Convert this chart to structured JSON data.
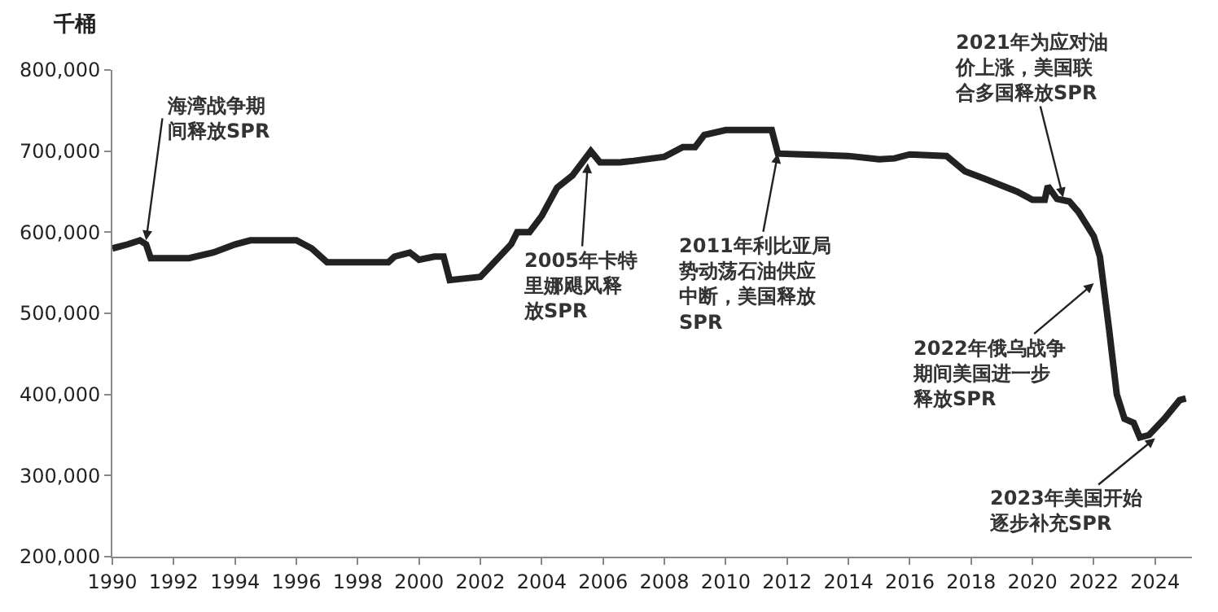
{
  "chart_data": {
    "type": "line",
    "ylabel": "千桶",
    "x": [
      1990.0,
      1990.5,
      1990.9,
      1991.1,
      1991.25,
      1992.5,
      1993.3,
      1994,
      1994.5,
      1996,
      1996.5,
      1997,
      1999,
      1999.2,
      1999.7,
      2000,
      2000.5,
      2000.8,
      2001,
      2001.5,
      2002,
      2002.5,
      2003,
      2003.2,
      2003.6,
      2004,
      2004.5,
      2005,
      2005.6,
      2005.9,
      2006.5,
      2007,
      2008,
      2008.6,
      2009,
      2009.3,
      2010,
      2011.5,
      2011.7,
      2012.5,
      2014,
      2015,
      2015.5,
      2016,
      2017.2,
      2017.8,
      2018.5,
      2019.5,
      2020,
      2020.4,
      2020.5,
      2020.8,
      2021.2,
      2021.5,
      2022,
      2022.2,
      2022.5,
      2022.75,
      2023,
      2023.3,
      2023.5,
      2023.8,
      2024.3,
      2024.8,
      2025
    ],
    "series": [
      {
        "color": "#222222",
        "values": [
          580000,
          585000,
          590000,
          585000,
          568000,
          568000,
          575000,
          585000,
          590000,
          590000,
          580000,
          563000,
          563000,
          570000,
          575000,
          566000,
          570000,
          570000,
          541000,
          543000,
          545000,
          565000,
          585000,
          600000,
          600000,
          620000,
          655000,
          670000,
          700000,
          686000,
          686000,
          688000,
          693000,
          705000,
          705000,
          720000,
          726000,
          726000,
          697000,
          696000,
          694000,
          690000,
          691000,
          696000,
          694000,
          675000,
          665000,
          650000,
          640000,
          640000,
          657000,
          641000,
          638000,
          625000,
          595000,
          570000,
          480000,
          400000,
          370000,
          365000,
          347000,
          350000,
          370000,
          393000,
          395000
        ]
      }
    ],
    "xlim": [
      1990,
      2025.2
    ],
    "xticks": [
      1990,
      1992,
      1994,
      1996,
      1998,
      2000,
      2002,
      2004,
      2006,
      2008,
      2010,
      2012,
      2014,
      2016,
      2018,
      2020,
      2022,
      2024
    ],
    "ylim": [
      200000,
      800000
    ],
    "yticks": [
      {
        "value": 200000,
        "label": "200,000"
      },
      {
        "value": 300000,
        "label": "300,000"
      },
      {
        "value": 400000,
        "label": "400,000"
      },
      {
        "value": 500000,
        "label": "500,000"
      },
      {
        "value": 600000,
        "label": "600,000"
      },
      {
        "value": 700000,
        "label": "700,000"
      },
      {
        "value": 800000,
        "label": "800,000"
      }
    ],
    "marker": "none",
    "line_style": "solid",
    "annotations": [
      {
        "text": "海湾战争期间释放SPR",
        "x": 1991.1,
        "y": 590000
      },
      {
        "text": "2005年卡特里娜飓风释放SPR",
        "x": 2005.5,
        "y": 685000
      },
      {
        "text": "2011年利比亚局势动荡石油供应中断，美国释放SPR",
        "x": 2011.7,
        "y": 697000
      },
      {
        "text": "2021年为应对油价上涨，美国联合多国释放SPR",
        "x": 2021.0,
        "y": 643000
      },
      {
        "text": "2022年俄乌战争期间美国进一步释放SPR",
        "x": 2022.0,
        "y": 537000
      },
      {
        "text": "2023年美国开始逐步补充SPR",
        "x": 2024.0,
        "y": 346000
      }
    ]
  }
}
